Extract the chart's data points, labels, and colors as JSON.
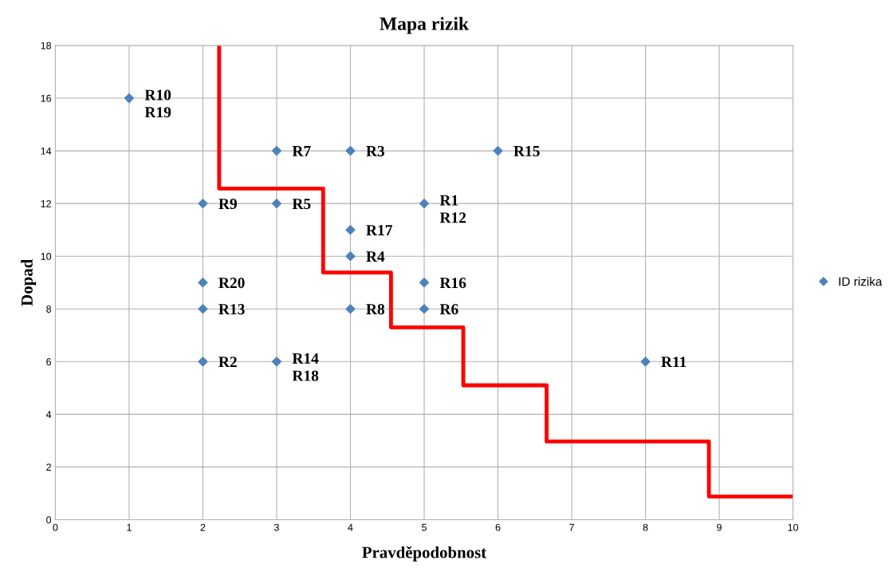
{
  "chart_data": {
    "type": "scatter",
    "title": "Mapa rizik",
    "xlabel": "Pravděpodobnost",
    "ylabel": "Dopad",
    "xlim": [
      0,
      10
    ],
    "ylim": [
      0,
      18
    ],
    "xticks": [
      0,
      1,
      2,
      3,
      4,
      5,
      6,
      7,
      8,
      9,
      10
    ],
    "yticks": [
      0,
      2,
      4,
      6,
      8,
      10,
      12,
      14,
      16,
      18
    ],
    "grid": true,
    "legend": "right",
    "series": [
      {
        "name": "ID rizika",
        "marker": "diamond",
        "color": "#4f81bd",
        "x": [
          1,
          3,
          4,
          6,
          2,
          3,
          5,
          4,
          4,
          2,
          5,
          2,
          4,
          5,
          2,
          3,
          8
        ],
        "values": [
          16,
          14,
          14,
          14,
          12,
          12,
          12,
          11,
          10,
          9,
          9,
          8,
          8,
          8,
          6,
          6,
          6
        ]
      },
      {
        "type": "line",
        "marker": "none",
        "color": "#ff0000",
        "x": [
          2.22,
          2.22,
          3.63,
          3.63,
          4.55,
          4.55,
          5.53,
          5.53,
          6.66,
          6.66,
          8.86,
          8.86,
          10
        ],
        "values": [
          18,
          12.57,
          12.57,
          9.38,
          9.38,
          7.3,
          7.3,
          5.1,
          5.1,
          2.97,
          2.97,
          0.88,
          0.88
        ]
      }
    ],
    "annotations": [
      {
        "text": "R10\nR19",
        "x": 1,
        "y": 16
      },
      {
        "text": "R7",
        "x": 3,
        "y": 14
      },
      {
        "text": "R3",
        "x": 4,
        "y": 14
      },
      {
        "text": "R15",
        "x": 6,
        "y": 14
      },
      {
        "text": "R9",
        "x": 2,
        "y": 12
      },
      {
        "text": "R5",
        "x": 3,
        "y": 12
      },
      {
        "text": "R1\nR12",
        "x": 5,
        "y": 12
      },
      {
        "text": "R17",
        "x": 4,
        "y": 11
      },
      {
        "text": "R4",
        "x": 4,
        "y": 10
      },
      {
        "text": "R20",
        "x": 2,
        "y": 9
      },
      {
        "text": "R16",
        "x": 5,
        "y": 9
      },
      {
        "text": "R13",
        "x": 2,
        "y": 8
      },
      {
        "text": "R8",
        "x": 4,
        "y": 8
      },
      {
        "text": "R6",
        "x": 5,
        "y": 8
      },
      {
        "text": "R2",
        "x": 2,
        "y": 6
      },
      {
        "text": "R14\nR18",
        "x": 3,
        "y": 6
      },
      {
        "text": "R11",
        "x": 8,
        "y": 6
      }
    ]
  }
}
